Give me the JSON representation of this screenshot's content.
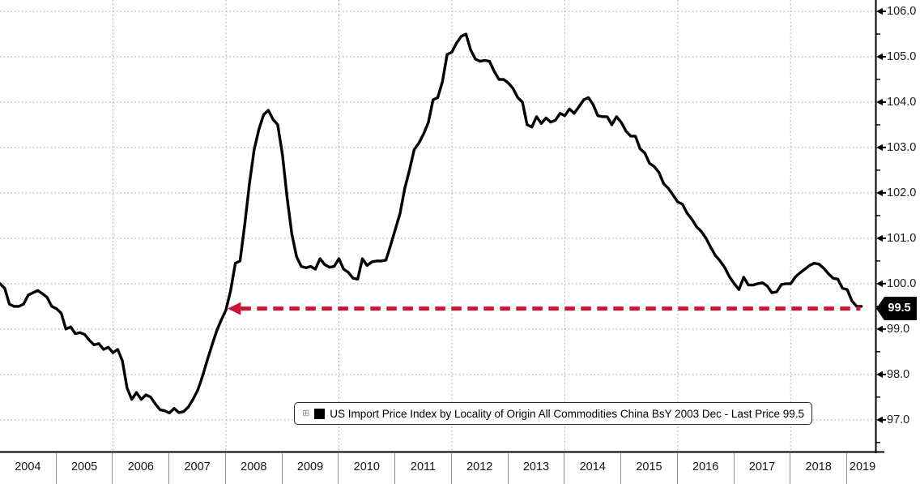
{
  "chart": {
    "background": "#ffffff",
    "line_color": "#000000",
    "grid_color": "#a3a3a3",
    "axis_color": "#000000",
    "arrow_color": "#ce1231",
    "label_color": "#1a1a1a",
    "last_price_label": "99.5",
    "legend": {
      "expand_icon": "⊞",
      "swatch_color": "#000000",
      "label": "US Import Price Index by Locality of Origin All Commodities China BsY 2003 Dec - Last Price 99.5"
    },
    "y_axis": {
      "tick_labels": [
        "106.0",
        "105.0",
        "104.0",
        "103.0",
        "102.0",
        "101.0",
        "100.0",
        "99.0",
        "98.0",
        "97.0"
      ],
      "tick_values": [
        106,
        105,
        104,
        103,
        102,
        101,
        100,
        99,
        98,
        97
      ],
      "minor_step": 0.5
    },
    "x_axis": {
      "year_labels": [
        "2004",
        "2005",
        "2006",
        "2007",
        "2008",
        "2009",
        "2010",
        "2011",
        "2012",
        "2013",
        "2014",
        "2015",
        "2016",
        "2017",
        "2018",
        "2019"
      ]
    }
  },
  "chart_data": {
    "type": "line",
    "title": "",
    "xlabel": "",
    "ylabel": "",
    "ylim": [
      96.3,
      106.25
    ],
    "x_months_total": 186,
    "grid": true,
    "legend_position": "bottom-center",
    "last_price": 99.5,
    "series": [
      {
        "name": "US Import Price Index by Locality of Origin All Commodities China BsY 2003 Dec",
        "start": "2003-12",
        "frequency": "monthly",
        "values": [
          100.0,
          99.9,
          99.55,
          99.5,
          99.5,
          99.55,
          99.75,
          99.8,
          99.85,
          99.78,
          99.7,
          99.5,
          99.45,
          99.35,
          99.0,
          99.05,
          98.9,
          98.92,
          98.88,
          98.75,
          98.65,
          98.68,
          98.55,
          98.6,
          98.48,
          98.55,
          98.3,
          97.7,
          97.45,
          97.6,
          97.45,
          97.55,
          97.5,
          97.35,
          97.22,
          97.2,
          97.15,
          97.25,
          97.16,
          97.18,
          97.28,
          97.45,
          97.65,
          97.95,
          98.3,
          98.63,
          98.95,
          99.2,
          99.42,
          99.85,
          100.45,
          100.5,
          101.3,
          102.2,
          102.95,
          103.4,
          103.72,
          103.82,
          103.62,
          103.5,
          102.85,
          101.9,
          101.1,
          100.6,
          100.38,
          100.35,
          100.38,
          100.32,
          100.55,
          100.42,
          100.36,
          100.38,
          100.55,
          100.32,
          100.25,
          100.12,
          100.1,
          100.55,
          100.4,
          100.48,
          100.5,
          100.5,
          100.52,
          100.85,
          101.2,
          101.55,
          102.1,
          102.5,
          102.95,
          103.1,
          103.3,
          103.55,
          104.05,
          104.1,
          104.45,
          105.05,
          105.1,
          105.3,
          105.45,
          105.5,
          105.15,
          104.95,
          104.9,
          104.92,
          104.9,
          104.68,
          104.5,
          104.5,
          104.42,
          104.3,
          104.1,
          104.0,
          103.5,
          103.45,
          103.68,
          103.53,
          103.65,
          103.56,
          103.6,
          103.75,
          103.7,
          103.85,
          103.75,
          103.9,
          104.05,
          104.1,
          103.95,
          103.7,
          103.68,
          103.68,
          103.5,
          103.68,
          103.55,
          103.36,
          103.25,
          103.25,
          102.97,
          102.88,
          102.65,
          102.58,
          102.45,
          102.2,
          102.1,
          101.95,
          101.8,
          101.75,
          101.55,
          101.42,
          101.25,
          101.15,
          101.0,
          100.8,
          100.62,
          100.5,
          100.35,
          100.15,
          100.0,
          99.87,
          100.14,
          99.97,
          99.97,
          100.0,
          100.02,
          99.95,
          99.8,
          99.82,
          99.98,
          100.0,
          100.0,
          100.15,
          100.24,
          100.32,
          100.4,
          100.45,
          100.43,
          100.34,
          100.22,
          100.12,
          100.1,
          99.9,
          99.87,
          99.62,
          99.5,
          99.5
        ]
      }
    ],
    "annotations": [
      {
        "type": "dashed-horizontal-arrow-left",
        "value": 99.45,
        "start_month": 48.4,
        "end_month": 182.8,
        "color": "#ce1231",
        "meaning": "last price points back to early-2008 level"
      }
    ]
  }
}
